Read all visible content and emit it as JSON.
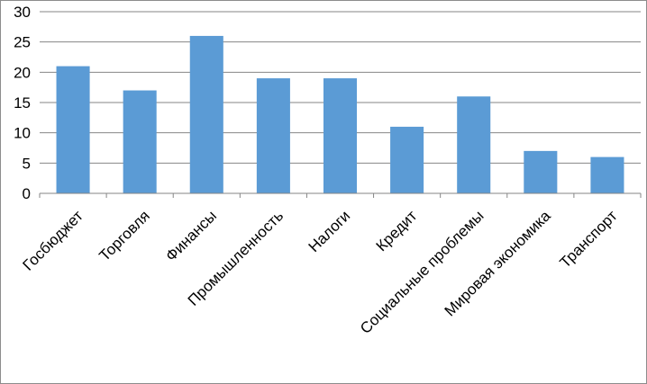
{
  "chart_data": {
    "type": "bar",
    "title": "",
    "xlabel": "",
    "ylabel": "",
    "categories": [
      "Госбюджет",
      "Торговля",
      "Финансы",
      "Промышленность",
      "Налоги",
      "Кредит",
      "Социальные проблемы",
      "Мировая экономика",
      "Транспорт"
    ],
    "values": [
      21,
      17,
      26,
      19,
      19,
      11,
      16,
      7,
      6
    ],
    "ylim": [
      0,
      30
    ],
    "yticks": [
      0,
      5,
      10,
      15,
      20,
      25,
      30
    ],
    "grid": true,
    "legend": "none",
    "bar_color": "#5b9bd5",
    "grid_color": "#868686"
  }
}
